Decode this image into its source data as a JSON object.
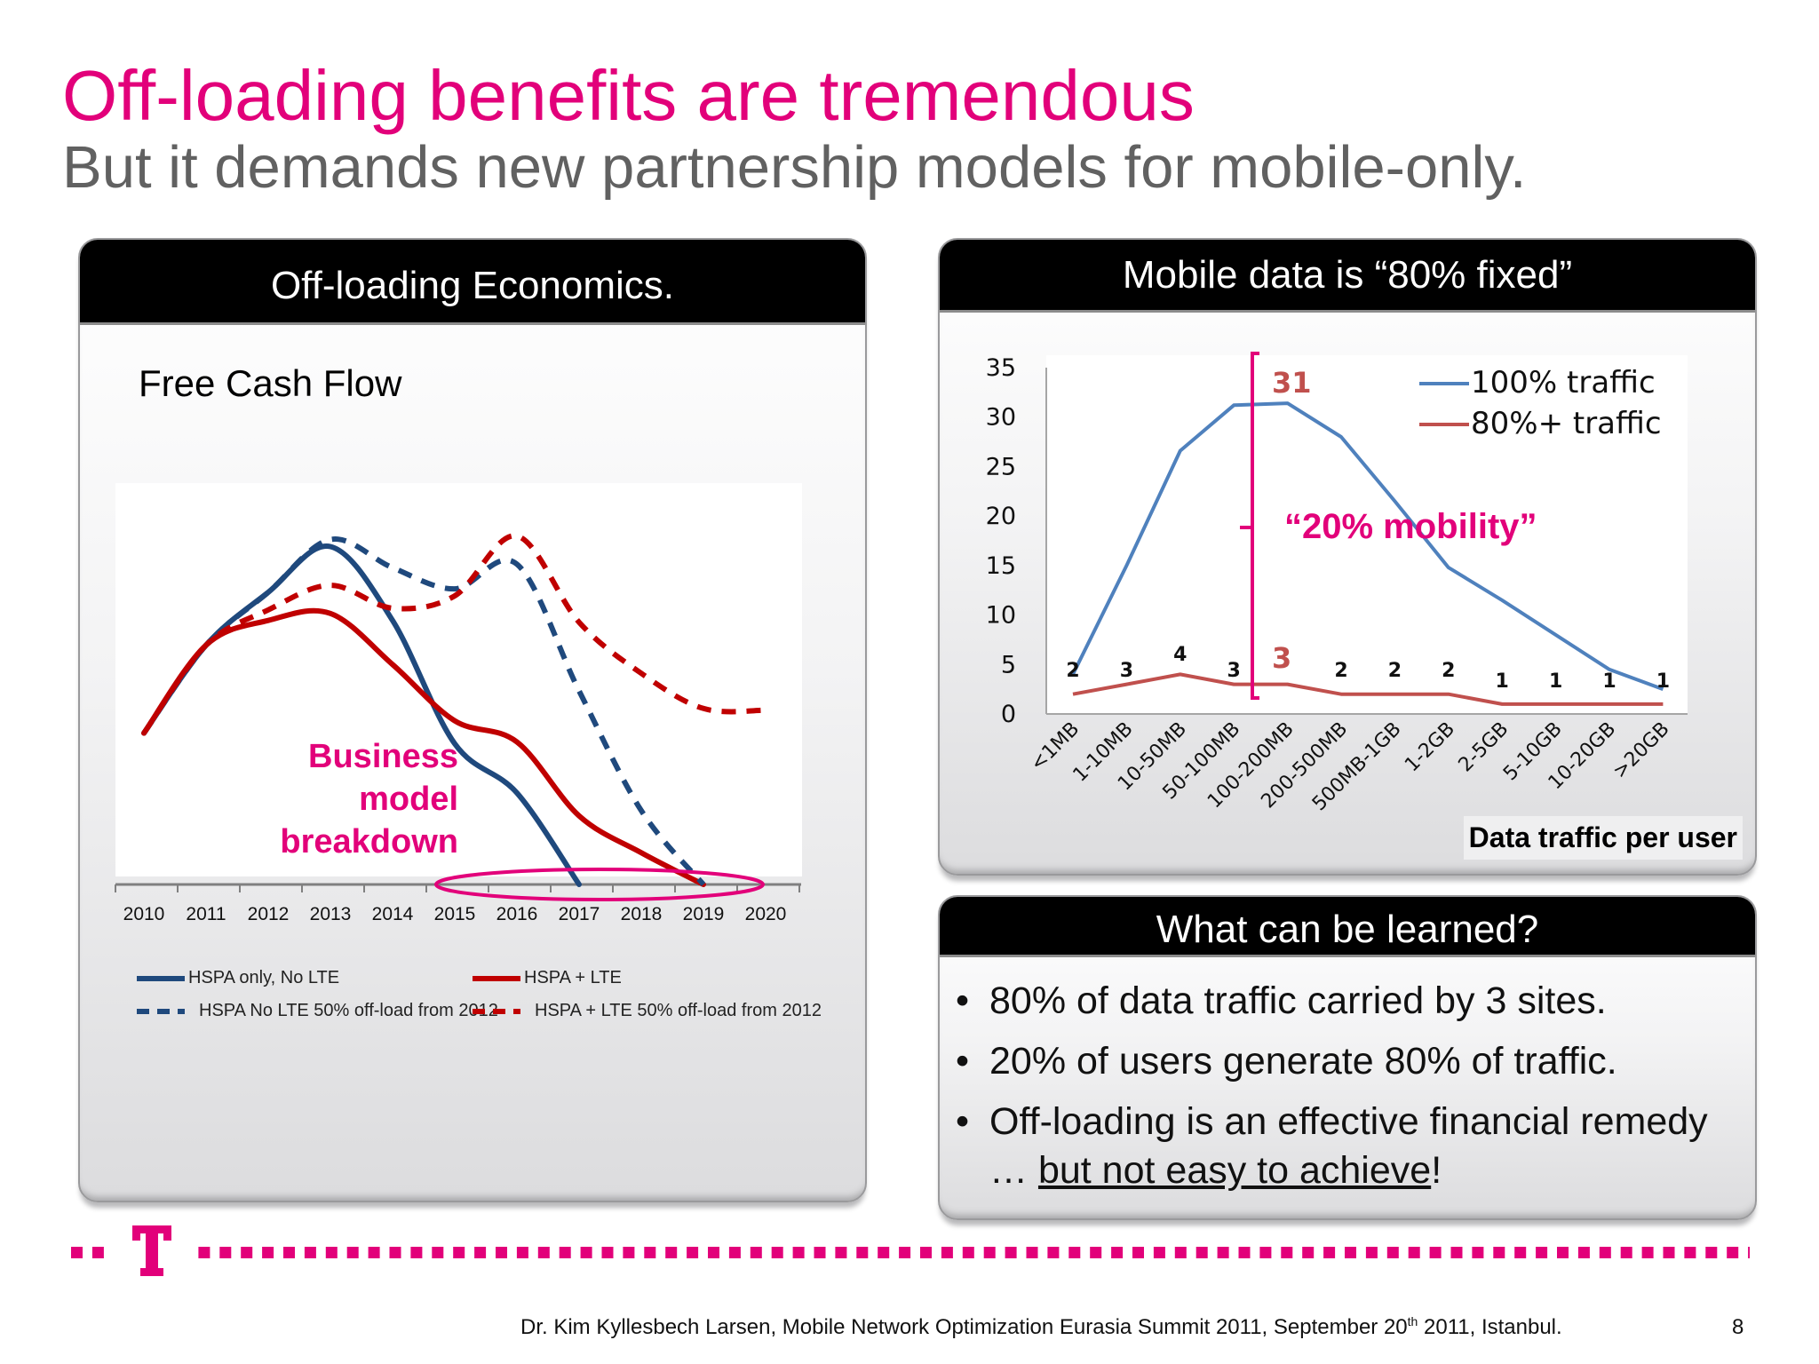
{
  "slide": {
    "title": "Off-loading benefits are tremendous",
    "subtitle": "But it demands new partnership models for mobile-only.",
    "page_number": "8"
  },
  "left_panel": {
    "header": "Off-loading Economics.",
    "chart_label": "Free Cash Flow",
    "annotation": {
      "line1": "Business",
      "line2": "model",
      "line3": "breakdown"
    }
  },
  "mobile_panel": {
    "header": "Mobile data is “80% fixed”",
    "bracket_top_label": "31",
    "bracket_bottom_label": "3",
    "bracket_note": "“20% mobility”",
    "x_axis_title": "Data traffic per user"
  },
  "learned_panel": {
    "header": "What can be learned?",
    "bullets": [
      "80% of data traffic carried by 3 sites.",
      "20% of users generate 80% of traffic."
    ],
    "bullet3_pre": "Off-loading is an effective financial remedy … ",
    "bullet3_underlined": "but not easy to achieve",
    "bullet3_post": "!"
  },
  "footer": {
    "text_before": "Dr. Kim Kyllesbech Larsen, Mobile Network Optimization Eurasia Summit 2011, September 20",
    "sup": "th",
    "text_after": " 2011, Istanbul."
  },
  "colors": {
    "magenta": "#e2007a",
    "navy": "#1f497d",
    "red": "#c00000",
    "blue": "#4f81bd",
    "brick": "#c0504d"
  },
  "chart_data": [
    {
      "type": "line",
      "title": "Free Cash Flow",
      "categories": [
        "2010",
        "2011",
        "2012",
        "2013",
        "2014",
        "2015",
        "2016",
        "2017",
        "2018",
        "2019",
        "2020"
      ],
      "ylim": [
        0,
        22
      ],
      "grid": false,
      "legend_position": "bottom",
      "series": [
        {
          "name": "HSPA only, No LTE",
          "style": "solid",
          "color": "#1f497d",
          "values": [
            8.6,
            13.6,
            16.6,
            19.2,
            15.0,
            8.0,
            5.2,
            0,
            null,
            null,
            null
          ]
        },
        {
          "name": "HSPA + LTE",
          "style": "solid",
          "color": "#c00000",
          "values": [
            8.6,
            13.6,
            15.0,
            15.4,
            12.5,
            9.3,
            8.1,
            3.9,
            1.8,
            0,
            null
          ]
        },
        {
          "name": "HSPA No LTE 50% off-load from 2012",
          "style": "dashed",
          "color": "#1f497d",
          "values": [
            8.6,
            13.6,
            16.6,
            19.6,
            18.0,
            16.8,
            18.2,
            11.0,
            4.2,
            0,
            null
          ]
        },
        {
          "name": "HSPA + LTE 50% off-load from 2012",
          "style": "dashed",
          "color": "#c00000",
          "values": [
            8.6,
            13.6,
            15.6,
            17.0,
            15.7,
            16.4,
            19.8,
            14.9,
            12.0,
            10.0,
            9.9
          ]
        }
      ]
    },
    {
      "type": "line",
      "title": "",
      "xlabel": "Data traffic per user",
      "ylabel": "",
      "categories": [
        "<1MB",
        "1-10MB",
        "10-50MB",
        "50-100MB",
        "100-200MB",
        "200-500MB",
        "500MB-1GB",
        "1-2GB",
        "2-5GB",
        "5-10GB",
        "10-20GB",
        ">20GB"
      ],
      "ylim": [
        0,
        35
      ],
      "yticks": [
        0,
        5,
        10,
        15,
        20,
        25,
        30,
        35
      ],
      "grid": false,
      "legend_position": "top-right",
      "series": [
        {
          "name": "100% traffic",
          "color": "#4f81bd",
          "values": [
            4,
            15,
            26.6,
            31.2,
            31.4,
            28,
            21.5,
            14.8,
            11.5,
            8,
            4.5,
            2.5
          ]
        },
        {
          "name": "80%+ traffic",
          "color": "#c0504d",
          "values": [
            2,
            3,
            4,
            3,
            3,
            2,
            2,
            2,
            1,
            1,
            1,
            1
          ],
          "labels": [
            "2",
            "3",
            "4",
            "3",
            "3",
            "2",
            "2",
            "2",
            "1",
            "1",
            "1",
            "1"
          ]
        }
      ]
    }
  ]
}
